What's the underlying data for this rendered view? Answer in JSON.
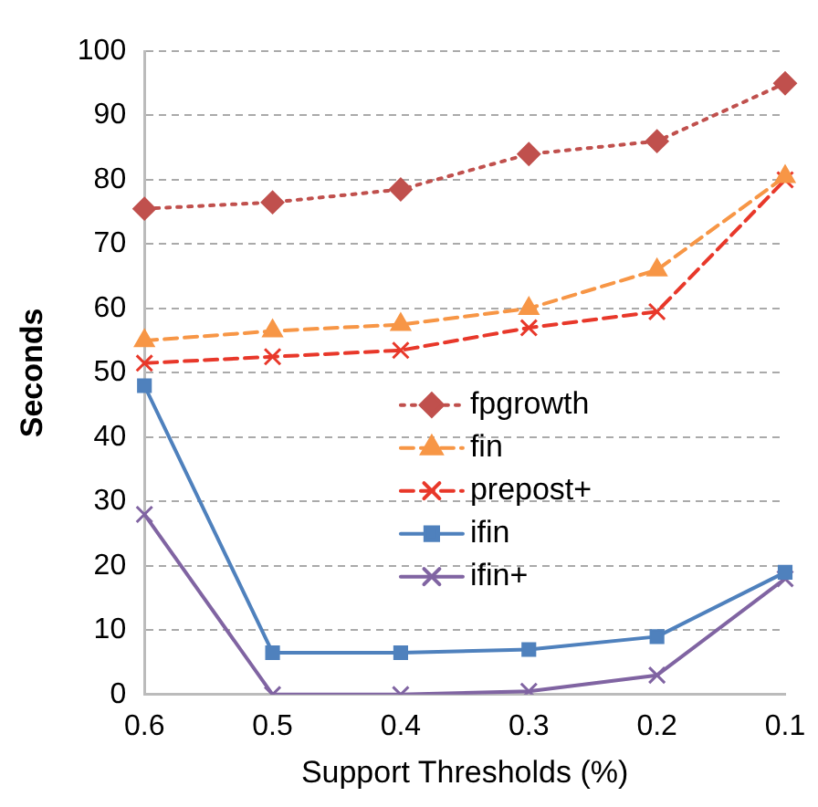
{
  "chart_data": {
    "type": "line",
    "xlabel": "Support Thresholds (%)",
    "ylabel": "Seconds",
    "categories": [
      "0.6",
      "0.5",
      "0.4",
      "0.3",
      "0.2",
      "0.1"
    ],
    "series": [
      {
        "name": "fpgrowth",
        "color": "#c0504d",
        "values": [
          75.5,
          76.5,
          78.5,
          84,
          86,
          95
        ],
        "marker": "diamond",
        "line_style": "dotted"
      },
      {
        "name": "fin",
        "color": "#f79646",
        "values": [
          55,
          56.5,
          57.5,
          60,
          66,
          80.5
        ],
        "marker": "triangle",
        "line_style": "dashed"
      },
      {
        "name": "prepost+",
        "color": "#e8382a",
        "values": [
          51.5,
          52.5,
          53.5,
          57,
          59.5,
          80
        ],
        "marker": "cross",
        "line_style": "dashed"
      },
      {
        "name": "ifin",
        "color": "#4f81bd",
        "values": [
          48,
          6.5,
          6.5,
          7,
          9,
          19
        ],
        "marker": "square",
        "line_style": "solid"
      },
      {
        "name": "ifin+",
        "color": "#8064a2",
        "values": [
          28,
          0,
          0,
          0.5,
          3,
          18
        ],
        "marker": "cross",
        "line_style": "solid"
      }
    ],
    "ylim": [
      0,
      100
    ],
    "yticks": [
      0,
      10,
      20,
      30,
      40,
      50,
      60,
      70,
      80,
      90,
      100
    ],
    "grid": "y",
    "legend": "center"
  }
}
